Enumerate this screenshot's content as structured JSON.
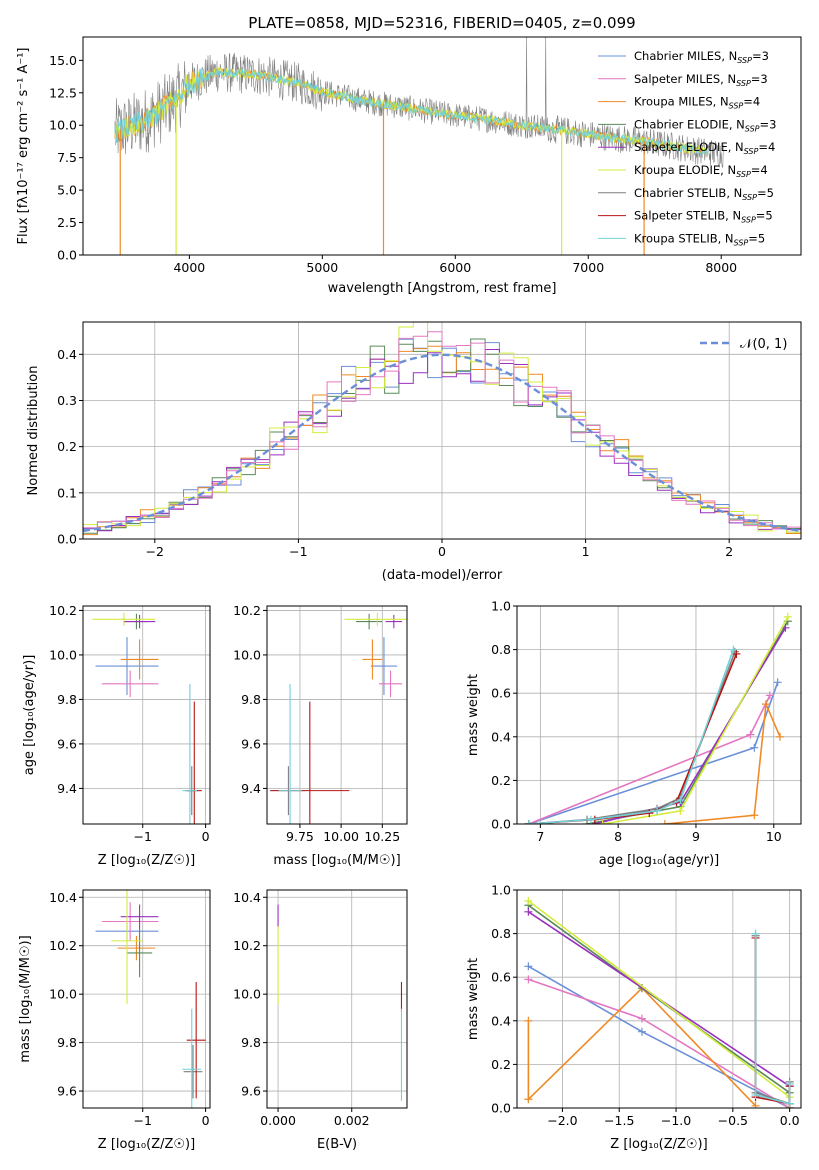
{
  "figure": {
    "title": "PLATE=0858, MJD=52316, FIBERID=0405, z=0.099",
    "colors": {
      "blue": "#6a8fd8",
      "pink": "#e377c2",
      "orange": "#f08a24",
      "green": "#5a8a5a",
      "purple": "#9a30c0",
      "lime": "#d4ec3c",
      "grey": "#7f7f7f",
      "red": "#b81414",
      "cyan": "#72d0d8",
      "grid": "#b0b0b0"
    }
  },
  "chart_data": [
    {
      "id": "spectrum",
      "type": "line",
      "title": "PLATE=0858, MJD=52316, FIBERID=0405, z=0.099",
      "xlabel": "wavelength [Angstrom, rest frame]",
      "ylabel": "Flux [fλ10⁻¹⁷ erg cm⁻² s⁻¹ A⁻¹]",
      "xlim": [
        3200,
        8600
      ],
      "ylim": [
        0,
        16.8
      ],
      "xticks": [
        4000,
        5000,
        6000,
        7000,
        8000
      ],
      "yticks": [
        0.0,
        2.5,
        5.0,
        7.5,
        10.0,
        12.5,
        15.0
      ],
      "grid": false,
      "legend_position": "top-right",
      "legend": [
        {
          "label": "Chabrier MILES, N_SSP=3",
          "color": "#6a8fd8"
        },
        {
          "label": "Salpeter MILES, N_SSP=3",
          "color": "#e377c2"
        },
        {
          "label": "Kroupa MILES, N_SSP=4",
          "color": "#f08a24"
        },
        {
          "label": "Chabrier ELODIE, N_SSP=3",
          "color": "#5a8a5a"
        },
        {
          "label": "Salpeter ELODIE, N_SSP=4",
          "color": "#9a30c0"
        },
        {
          "label": "Kroupa ELODIE, N_SSP=4",
          "color": "#d4ec3c"
        },
        {
          "label": "Chabrier STELIB, N_SSP=5",
          "color": "#7f7f7f"
        },
        {
          "label": "Salpeter STELIB, N_SSP=5",
          "color": "#b81414"
        },
        {
          "label": "Kroupa STELIB, N_SSP=5",
          "color": "#72d0d8"
        }
      ],
      "continuum_model": {
        "x": [
          3450,
          3700,
          3900,
          4000,
          4200,
          4500,
          4800,
          5000,
          5300,
          5600,
          5900,
          6200,
          6500,
          6800,
          7000,
          7200,
          7400,
          7800,
          8000
        ],
        "y": [
          9.5,
          10.5,
          12.0,
          13.2,
          14.1,
          13.9,
          13.3,
          12.6,
          11.9,
          11.4,
          10.9,
          10.5,
          10.0,
          9.6,
          9.3,
          9.0,
          8.8,
          8.1,
          7.8
        ]
      }
    },
    {
      "id": "residuals",
      "type": "line",
      "xlabel": "(data-model)/error",
      "ylabel": "Normed distribution",
      "xlim": [
        -2.5,
        2.5
      ],
      "ylim": [
        0,
        0.47
      ],
      "xticks": [
        -2,
        -1,
        0,
        1,
        2
      ],
      "yticks": [
        0.0,
        0.1,
        0.2,
        0.3,
        0.4
      ],
      "grid": true,
      "legend_position": "top-right",
      "legend": [
        {
          "label": "𝒩(0, 1)",
          "color": "#6a8fd8"
        }
      ],
      "bin_width": 0.1
    },
    {
      "id": "age-vs-Z",
      "type": "scatter",
      "xlabel": "Z [log₁₀(Z/Z☉)]",
      "ylabel": "age  [log₁₀(age/yr)]",
      "xlim": [
        -1.95,
        0.07
      ],
      "ylim": [
        9.24,
        10.22
      ],
      "xticks": [
        -1,
        0
      ],
      "yticks": [
        9.4,
        9.6,
        9.8,
        10.0,
        10.2
      ],
      "grid": true,
      "points": [
        {
          "color": "#6a8fd8",
          "x": -1.25,
          "xerr": 0.5,
          "y": 9.95,
          "yerr": 0.13
        },
        {
          "color": "#e377c2",
          "x": -1.2,
          "xerr": 0.45,
          "y": 9.87,
          "yerr": 0.06
        },
        {
          "color": "#f08a24",
          "x": -1.05,
          "xerr": 0.3,
          "y": 9.98,
          "yerr": 0.09
        },
        {
          "color": "#5a8a5a",
          "x": -1.1,
          "xerr": 0.2,
          "y": 10.15,
          "yerr": 0.035
        },
        {
          "color": "#9a30c0",
          "x": -1.05,
          "xerr": 0.25,
          "y": 10.15,
          "yerr": 0.03
        },
        {
          "color": "#d4ec3c",
          "x": -1.3,
          "xerr": 0.5,
          "y": 10.16,
          "yerr": 0.03
        },
        {
          "color": "#7f7f7f",
          "x": -0.22,
          "xerr": 0.1,
          "y": 9.39,
          "yerr": 0.11
        },
        {
          "color": "#b81414",
          "x": -0.18,
          "xerr": 0.12,
          "y": 9.39,
          "yerr": 0.4
        },
        {
          "color": "#72d0d8",
          "x": -0.25,
          "xerr": 0.12,
          "y": 9.39,
          "yerr": 0.48
        }
      ]
    },
    {
      "id": "age-vs-mass",
      "type": "scatter",
      "xlabel": "mass [log₁₀(M/M☉)]",
      "ylabel": "",
      "xlim": [
        9.55,
        10.4
      ],
      "ylim": [
        9.24,
        10.22
      ],
      "xticks": [
        9.75,
        10.0,
        10.25
      ],
      "yticks": [
        9.4,
        9.6,
        9.8,
        10.0,
        10.2
      ],
      "grid": true,
      "points": [
        {
          "color": "#6a8fd8",
          "x": 10.26,
          "xerr": 0.08,
          "y": 9.95,
          "yerr": 0.13
        },
        {
          "color": "#e377c2",
          "x": 10.3,
          "xerr": 0.07,
          "y": 9.87,
          "yerr": 0.06
        },
        {
          "color": "#f08a24",
          "x": 10.19,
          "xerr": 0.06,
          "y": 9.98,
          "yerr": 0.09
        },
        {
          "color": "#5a8a5a",
          "x": 10.17,
          "xerr": 0.08,
          "y": 10.15,
          "yerr": 0.035
        },
        {
          "color": "#9a30c0",
          "x": 10.32,
          "xerr": 0.05,
          "y": 10.15,
          "yerr": 0.03
        },
        {
          "color": "#d4ec3c",
          "x": 10.22,
          "xerr": 0.2,
          "y": 10.16,
          "yerr": 0.03
        },
        {
          "color": "#7f7f7f",
          "x": 9.68,
          "xerr": 0.11,
          "y": 9.39,
          "yerr": 0.11
        },
        {
          "color": "#b81414",
          "x": 9.81,
          "xerr": 0.24,
          "y": 9.39,
          "yerr": 0.4
        },
        {
          "color": "#72d0d8",
          "x": 9.69,
          "xerr": 0.07,
          "y": 9.39,
          "yerr": 0.48
        }
      ]
    },
    {
      "id": "mass-weight-vs-age",
      "type": "line",
      "xlabel": "age  [log₁₀(age/yr)]",
      "ylabel": "mass weight",
      "xlim": [
        6.7,
        10.35
      ],
      "ylim": [
        0.0,
        1.0
      ],
      "xticks": [
        7,
        8,
        9,
        10
      ],
      "yticks": [
        0.0,
        0.2,
        0.4,
        0.6,
        0.8,
        1.0
      ],
      "grid": true,
      "series": [
        {
          "color": "#6a8fd8",
          "x": [
            6.85,
            9.75,
            10.05
          ],
          "y": [
            0.0,
            0.35,
            0.65
          ]
        },
        {
          "color": "#e377c2",
          "x": [
            6.85,
            9.7,
            9.95
          ],
          "y": [
            0.0,
            0.41,
            0.59
          ]
        },
        {
          "color": "#f08a24",
          "x": [
            8.6,
            9.75,
            9.9,
            10.08
          ],
          "y": [
            0.0,
            0.04,
            0.55,
            0.4
          ]
        },
        {
          "color": "#5a8a5a",
          "x": [
            7.6,
            8.5,
            8.8,
            10.18
          ],
          "y": [
            0.0,
            0.06,
            0.08,
            0.93
          ]
        },
        {
          "color": "#9a30c0",
          "x": [
            7.7,
            8.8,
            10.15
          ],
          "y": [
            0.0,
            0.1,
            0.9
          ]
        },
        {
          "color": "#d4ec3c",
          "x": [
            7.8,
            8.8,
            10.18
          ],
          "y": [
            0.0,
            0.06,
            0.95
          ]
        },
        {
          "color": "#7f7f7f",
          "x": [
            6.85,
            7.6,
            8.5,
            8.8,
            9.5
          ],
          "y": [
            0.0,
            0.02,
            0.07,
            0.12,
            0.79
          ]
        },
        {
          "color": "#b81414",
          "x": [
            6.85,
            7.7,
            8.4,
            8.75,
            9.52
          ],
          "y": [
            0.0,
            0.02,
            0.05,
            0.1,
            0.78
          ]
        },
        {
          "color": "#72d0d8",
          "x": [
            6.85,
            7.65,
            8.5,
            8.8,
            9.48
          ],
          "y": [
            0.0,
            0.02,
            0.06,
            0.11,
            0.8
          ]
        }
      ]
    },
    {
      "id": "mass-vs-Z",
      "type": "scatter",
      "xlabel": "Z [log₁₀(Z/Z☉)]",
      "ylabel": "mass [log₁₀(M/M☉)]",
      "xlim": [
        -1.95,
        0.07
      ],
      "ylim": [
        9.53,
        10.43
      ],
      "xticks": [
        -1,
        0
      ],
      "yticks": [
        9.6,
        9.8,
        10.0,
        10.2,
        10.4
      ],
      "grid": true,
      "points": [
        {
          "color": "#6a8fd8",
          "x": -1.25,
          "xerr": 0.5,
          "y": 10.26,
          "yerr": 0.04
        },
        {
          "color": "#e377c2",
          "x": -1.2,
          "xerr": 0.45,
          "y": 10.3,
          "yerr": 0.08
        },
        {
          "color": "#f08a24",
          "x": -1.1,
          "xerr": 0.3,
          "y": 10.19,
          "yerr": 0.05
        },
        {
          "color": "#5a8a5a",
          "x": -1.05,
          "xerr": 0.2,
          "y": 10.17,
          "yerr": 0.1
        },
        {
          "color": "#9a30c0",
          "x": -1.05,
          "xerr": 0.3,
          "y": 10.32,
          "yerr": 0.05
        },
        {
          "color": "#d4ec3c",
          "x": -1.25,
          "xerr": 0.25,
          "y": 10.22,
          "yerr": 0.26
        },
        {
          "color": "#7f7f7f",
          "x": -0.2,
          "xerr": 0.15,
          "y": 9.68,
          "yerr": 0.11
        },
        {
          "color": "#b81414",
          "x": -0.15,
          "xerr": 0.15,
          "y": 9.81,
          "yerr": 0.24
        },
        {
          "color": "#72d0d8",
          "x": -0.22,
          "xerr": 0.15,
          "y": 9.69,
          "yerr": 0.25
        }
      ]
    },
    {
      "id": "mass-vs-ebv",
      "type": "scatter",
      "xlabel": "E(B-V)",
      "ylabel": "",
      "xlim": [
        -0.0003,
        0.0035
      ],
      "ylim": [
        9.53,
        10.43
      ],
      "xticks": [
        0.0,
        0.002
      ],
      "xtick_labels": [
        "0.000",
        "0.002"
      ],
      "yticks": [
        9.6,
        9.8,
        10.0,
        10.2,
        10.4
      ],
      "grid": true,
      "points": [
        {
          "color": "#9a30c0",
          "x": 0.0,
          "xerr": 0,
          "y": 10.32,
          "yerr": 0.05
        },
        {
          "color": "#d4ec3c",
          "x": 0.0,
          "xerr": 0,
          "y": 10.12,
          "yerr": 0.16
        },
        {
          "color": "#b81414",
          "x": 0.00335,
          "xerr": 0,
          "y": 9.99,
          "yerr": 0.06
        },
        {
          "color": "#72d0d8",
          "x": 0.00335,
          "xerr": 0,
          "y": 9.75,
          "yerr": 0.19
        }
      ]
    },
    {
      "id": "mass-weight-vs-Z",
      "type": "line",
      "xlabel": "Z [log₁₀(Z/Z☉)]",
      "ylabel": "mass weight",
      "xlim": [
        -2.4,
        0.1
      ],
      "ylim": [
        0.0,
        1.0
      ],
      "xticks": [
        -2.0,
        -1.5,
        -1.0,
        -0.5,
        0.0
      ],
      "yticks": [
        0.0,
        0.2,
        0.4,
        0.6,
        0.8,
        1.0
      ],
      "grid": true,
      "series": [
        {
          "color": "#6a8fd8",
          "x": [
            -2.3,
            -1.3,
            0.0
          ],
          "y": [
            0.65,
            0.35,
            0.0
          ]
        },
        {
          "color": "#e377c2",
          "x": [
            -2.3,
            -1.3,
            0.0
          ],
          "y": [
            0.59,
            0.41,
            0.0
          ]
        },
        {
          "color": "#f08a24",
          "x": [
            -2.3,
            -2.3,
            -1.3,
            -0.3
          ],
          "y": [
            0.4,
            0.04,
            0.55,
            0.01
          ]
        },
        {
          "color": "#5a8a5a",
          "x": [
            -2.3,
            -1.3,
            0.0,
            0.0
          ],
          "y": [
            0.93,
            0.55,
            0.07,
            0.0
          ]
        },
        {
          "color": "#9a30c0",
          "x": [
            -2.3,
            0.0,
            0.0
          ],
          "y": [
            0.9,
            0.1,
            0.0
          ]
        },
        {
          "color": "#d4ec3c",
          "x": [
            -2.3,
            0.0,
            0.0
          ],
          "y": [
            0.95,
            0.05,
            0.0
          ]
        },
        {
          "color": "#7f7f7f",
          "x": [
            -0.3,
            -0.3,
            0.0,
            0.0
          ],
          "y": [
            0.79,
            0.07,
            0.02,
            0.12
          ]
        },
        {
          "color": "#b81414",
          "x": [
            -0.3,
            -0.3,
            0.0,
            0.0
          ],
          "y": [
            0.78,
            0.05,
            0.02,
            0.1
          ]
        },
        {
          "color": "#72d0d8",
          "x": [
            -0.3,
            -0.3,
            0.0,
            0.0
          ],
          "y": [
            0.8,
            0.06,
            0.02,
            0.11
          ]
        }
      ]
    }
  ]
}
